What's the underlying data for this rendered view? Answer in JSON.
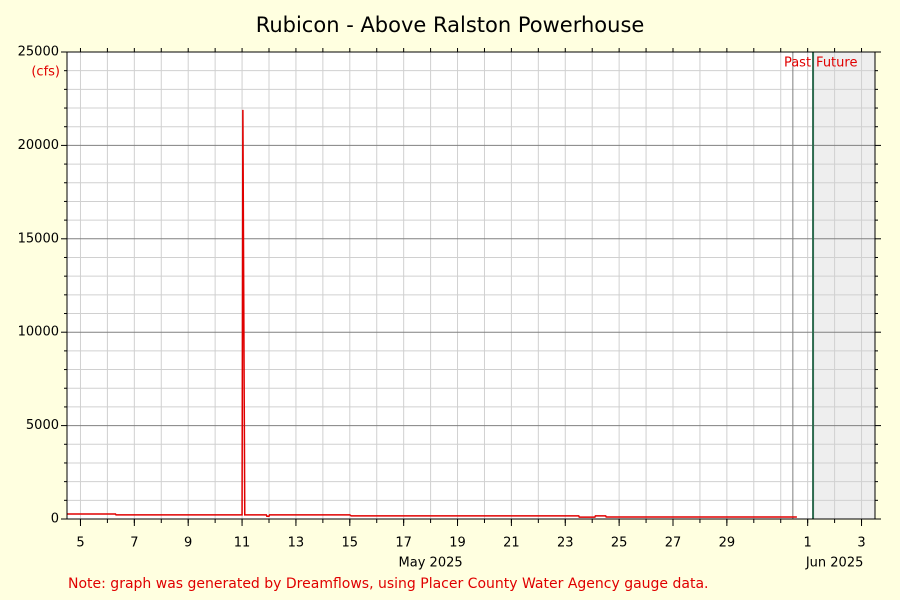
{
  "chart_data": {
    "type": "line",
    "title": "Rubicon - Above Ralston Powerhouse",
    "y_label": "(cfs)",
    "note": "Note: graph was generated by Dreamflows, using Placer County Water Agency gauge data.",
    "x": [
      4.5,
      6.3,
      6.32,
      11.0,
      11.03,
      11.1,
      11.9,
      11.92,
      12.0,
      12.02,
      15.0,
      15.05,
      23.5,
      23.52,
      24.1,
      24.12,
      24.5,
      24.52,
      31.6
    ],
    "values": [
      270,
      270,
      220,
      220,
      21900,
      220,
      220,
      150,
      150,
      220,
      220,
      170,
      170,
      100,
      100,
      170,
      170,
      110,
      110
    ],
    "color": "#e00000",
    "xlim": [
      4.5,
      34.5
    ],
    "xticks": [
      5,
      7,
      9,
      11,
      13,
      15,
      17,
      19,
      21,
      23,
      25,
      27,
      29,
      {
        "value": 32,
        "label": "1"
      },
      {
        "value": 34,
        "label": "3"
      }
    ],
    "xminorticks": [
      5,
      6,
      7,
      8,
      9,
      10,
      11,
      12,
      13,
      14,
      15,
      16,
      17,
      18,
      19,
      20,
      21,
      22,
      23,
      24,
      25,
      26,
      27,
      28,
      29,
      30,
      31,
      32,
      33,
      34
    ],
    "month_labels": [
      {
        "value": 18,
        "label": "May 2025"
      },
      {
        "value": 33,
        "label": "Jun 2025"
      }
    ],
    "ylim": [
      0,
      25000
    ],
    "yticks": [
      0,
      5000,
      10000,
      15000,
      20000,
      25000
    ],
    "yminorticks": [
      1000,
      2000,
      3000,
      4000,
      6000,
      7000,
      8000,
      9000,
      11000,
      12000,
      13000,
      14000,
      16000,
      17000,
      18000,
      19000,
      21000,
      22000,
      23000,
      24000
    ],
    "grid": true,
    "data_end": 31.45,
    "now": 32.2,
    "past_label": "Past",
    "future_label": "Future"
  }
}
